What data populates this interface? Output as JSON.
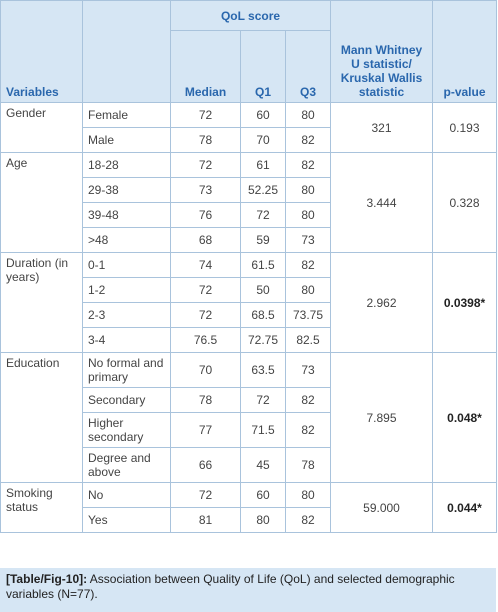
{
  "table": {
    "header": {
      "variables": "Variables",
      "qol": "QoL score",
      "median": "Median",
      "q1": "Q1",
      "q3": "Q3",
      "statistic": "Mann Whitney U statistic/ Kruskal Wallis statistic",
      "p_value": "p-value"
    },
    "groups": [
      {
        "variable": "Gender",
        "statistic": "321",
        "p_value": "0.193",
        "significant": false,
        "rows": [
          [
            "Female",
            "72",
            "60",
            "80"
          ],
          [
            "Male",
            "78",
            "70",
            "82"
          ]
        ]
      },
      {
        "variable": "Age",
        "statistic": "3.444",
        "p_value": "0.328",
        "significant": false,
        "rows": [
          [
            "18-28",
            "72",
            "61",
            "82"
          ],
          [
            "29-38",
            "73",
            "52.25",
            "80"
          ],
          [
            "39-48",
            "76",
            "72",
            "80"
          ],
          [
            ">48",
            "68",
            "59",
            "73"
          ]
        ]
      },
      {
        "variable": "Duration (in years)",
        "statistic": "2.962",
        "p_value": "0.0398*",
        "significant": true,
        "rows": [
          [
            "0-1",
            "74",
            "61.5",
            "82"
          ],
          [
            "1-2",
            "72",
            "50",
            "80"
          ],
          [
            "2-3",
            "72",
            "68.5",
            "73.75"
          ],
          [
            "3-4",
            "76.5",
            "72.75",
            "82.5"
          ]
        ]
      },
      {
        "variable": "Education",
        "statistic": "7.895",
        "p_value": "0.048*",
        "significant": true,
        "rows": [
          [
            "No formal and primary",
            "70",
            "63.5",
            "73"
          ],
          [
            "Secondary",
            "78",
            "72",
            "82"
          ],
          [
            "Higher secondary",
            "77",
            "71.5",
            "82"
          ],
          [
            "Degree and above",
            "66",
            "45",
            "78"
          ]
        ]
      },
      {
        "variable": "Smoking status",
        "statistic": "59.000",
        "p_value": "0.044*",
        "significant": true,
        "rows": [
          [
            "No",
            "72",
            "60",
            "80"
          ],
          [
            "Yes",
            "81",
            "80",
            "82"
          ]
        ]
      }
    ]
  },
  "caption": {
    "label": "[Table/Fig-10]:",
    "text": "Association between Quality of Life (QoL) and selected demographic variables (N=77)."
  }
}
